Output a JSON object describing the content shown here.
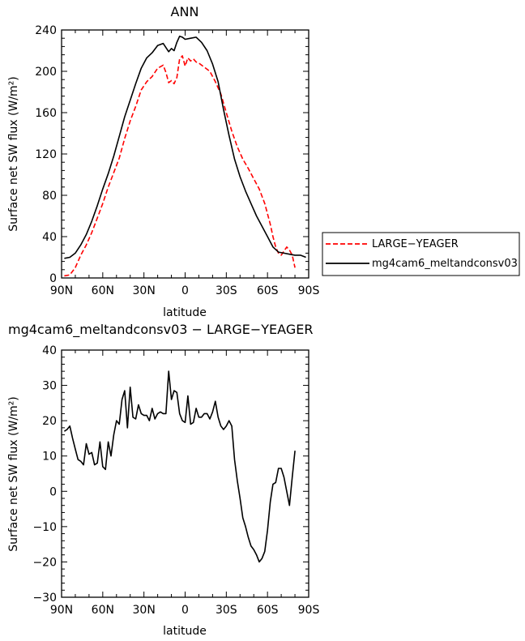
{
  "chart_data": [
    {
      "type": "line",
      "title": "ANN",
      "xlabel": "latitude",
      "ylabel": "Surface net SW flux (W/m²)",
      "xlim": [
        -90,
        90
      ],
      "ylim": [
        0,
        240
      ],
      "xticks": [
        -90,
        -60,
        -30,
        0,
        30,
        60,
        90
      ],
      "xtick_labels": [
        "90N",
        "60N",
        "30N",
        "0",
        "30S",
        "60S",
        "90S"
      ],
      "yticks": [
        0,
        40,
        80,
        120,
        160,
        200,
        240
      ],
      "ytick_labels": [
        "0",
        "40",
        "80",
        "120",
        "160",
        "200",
        "240"
      ],
      "grid": false,
      "legend_position": "right",
      "series": [
        {
          "name": "LARGE−YEAGER",
          "color": "#ff0000",
          "style": "dashed",
          "x": [
            -88,
            -84,
            -80,
            -76,
            -72,
            -68,
            -64,
            -60,
            -56,
            -52,
            -48,
            -44,
            -40,
            -36,
            -32,
            -28,
            -24,
            -20,
            -16,
            -14,
            -12,
            -10,
            -8,
            -6,
            -4,
            -2,
            0,
            2,
            4,
            6,
            8,
            10,
            14,
            18,
            22,
            26,
            30,
            34,
            38,
            42,
            46,
            50,
            54,
            58,
            62,
            64,
            66,
            68,
            70,
            72,
            74,
            76,
            78,
            80
          ],
          "y": [
            2,
            3,
            10,
            22,
            32,
            44,
            58,
            72,
            88,
            102,
            116,
            135,
            152,
            166,
            182,
            190,
            195,
            203,
            206,
            199,
            189,
            191,
            188,
            194,
            212,
            215,
            205,
            213,
            210,
            212,
            209,
            208,
            204,
            200,
            190,
            178,
            160,
            142,
            127,
            115,
            106,
            96,
            86,
            72,
            52,
            40,
            30,
            24,
            22,
            26,
            30,
            27,
            22,
            10
          ]
        },
        {
          "name": "mg4cam6_meltandconsv03",
          "color": "#000000",
          "style": "solid",
          "x": [
            -88,
            -84,
            -80,
            -76,
            -72,
            -68,
            -64,
            -60,
            -56,
            -52,
            -48,
            -44,
            -40,
            -36,
            -32,
            -28,
            -24,
            -20,
            -16,
            -12,
            -10,
            -8,
            -6,
            -4,
            -2,
            0,
            4,
            8,
            12,
            16,
            20,
            24,
            28,
            32,
            36,
            40,
            44,
            48,
            52,
            56,
            60,
            64,
            68,
            72,
            76,
            80,
            84,
            88
          ],
          "y": [
            19,
            20,
            24,
            32,
            42,
            55,
            70,
            86,
            101,
            118,
            137,
            156,
            172,
            188,
            203,
            213,
            218,
            225,
            227,
            219,
            222,
            220,
            228,
            234,
            233,
            231,
            232,
            233,
            228,
            220,
            207,
            190,
            163,
            138,
            115,
            98,
            84,
            72,
            60,
            50,
            40,
            30,
            25,
            24,
            23,
            22,
            22,
            20
          ]
        }
      ]
    },
    {
      "type": "line",
      "title": "mg4cam6_meltandconsv03 − LARGE−YEAGER",
      "xlabel": "latitude",
      "ylabel": "Surface net SW flux (W/m²)",
      "xlim": [
        -90,
        90
      ],
      "ylim": [
        -30,
        40
      ],
      "xticks": [
        -90,
        -60,
        -30,
        0,
        30,
        60,
        90
      ],
      "xtick_labels": [
        "90N",
        "60N",
        "30N",
        "0",
        "30S",
        "60S",
        "90S"
      ],
      "yticks": [
        -30,
        -20,
        -10,
        0,
        10,
        20,
        30,
        40
      ],
      "ytick_labels": [
        "−30",
        "−20",
        "−10",
        "0",
        "10",
        "20",
        "30",
        "40"
      ],
      "grid": false,
      "series": [
        {
          "color": "#000000",
          "style": "solid",
          "x": [
            -88,
            -86,
            -84,
            -82,
            -80,
            -78,
            -76,
            -74,
            -72,
            -70,
            -68,
            -66,
            -64,
            -62,
            -60,
            -58,
            -56,
            -54,
            -52,
            -50,
            -48,
            -46,
            -44,
            -42,
            -40,
            -38,
            -36,
            -34,
            -32,
            -30,
            -28,
            -26,
            -24,
            -22,
            -20,
            -18,
            -16,
            -14,
            -12,
            -10,
            -8,
            -6,
            -4,
            -2,
            0,
            2,
            4,
            6,
            8,
            10,
            12,
            14,
            16,
            18,
            20,
            22,
            24,
            26,
            28,
            30,
            32,
            34,
            36,
            38,
            40,
            42,
            44,
            46,
            48,
            50,
            52,
            54,
            56,
            58,
            60,
            62,
            64,
            66,
            68,
            70,
            72,
            74,
            76,
            78,
            80
          ],
          "y": [
            17,
            17.5,
            18.5,
            15,
            12,
            9,
            8.5,
            7.5,
            13.5,
            10.5,
            11,
            7.5,
            8,
            14,
            7,
            6.2,
            14,
            10,
            16,
            20,
            19,
            26,
            28.5,
            18,
            29.5,
            21,
            20.5,
            24.5,
            22,
            21.5,
            21.5,
            20,
            23.5,
            20.5,
            22,
            22.5,
            22,
            22,
            34,
            26,
            28.5,
            28,
            22,
            20,
            19.5,
            27,
            19,
            19.5,
            23.5,
            21,
            21,
            22,
            22,
            20.5,
            22.5,
            25.5,
            21,
            18.5,
            17.5,
            18.5,
            20,
            18.5,
            9,
            3,
            -2,
            -7.5,
            -10,
            -13,
            -15.5,
            -16.5,
            -18,
            -20,
            -19,
            -17,
            -11,
            -3,
            2,
            2.5,
            6.5,
            6.5,
            4,
            0,
            -4,
            4,
            11.5
          ]
        }
      ]
    }
  ],
  "legend": {
    "items": [
      {
        "label": "LARGE−YEAGER",
        "color": "#ff0000",
        "style": "dashed"
      },
      {
        "label": "mg4cam6_meltandconsv03",
        "color": "#000000",
        "style": "solid"
      }
    ]
  }
}
